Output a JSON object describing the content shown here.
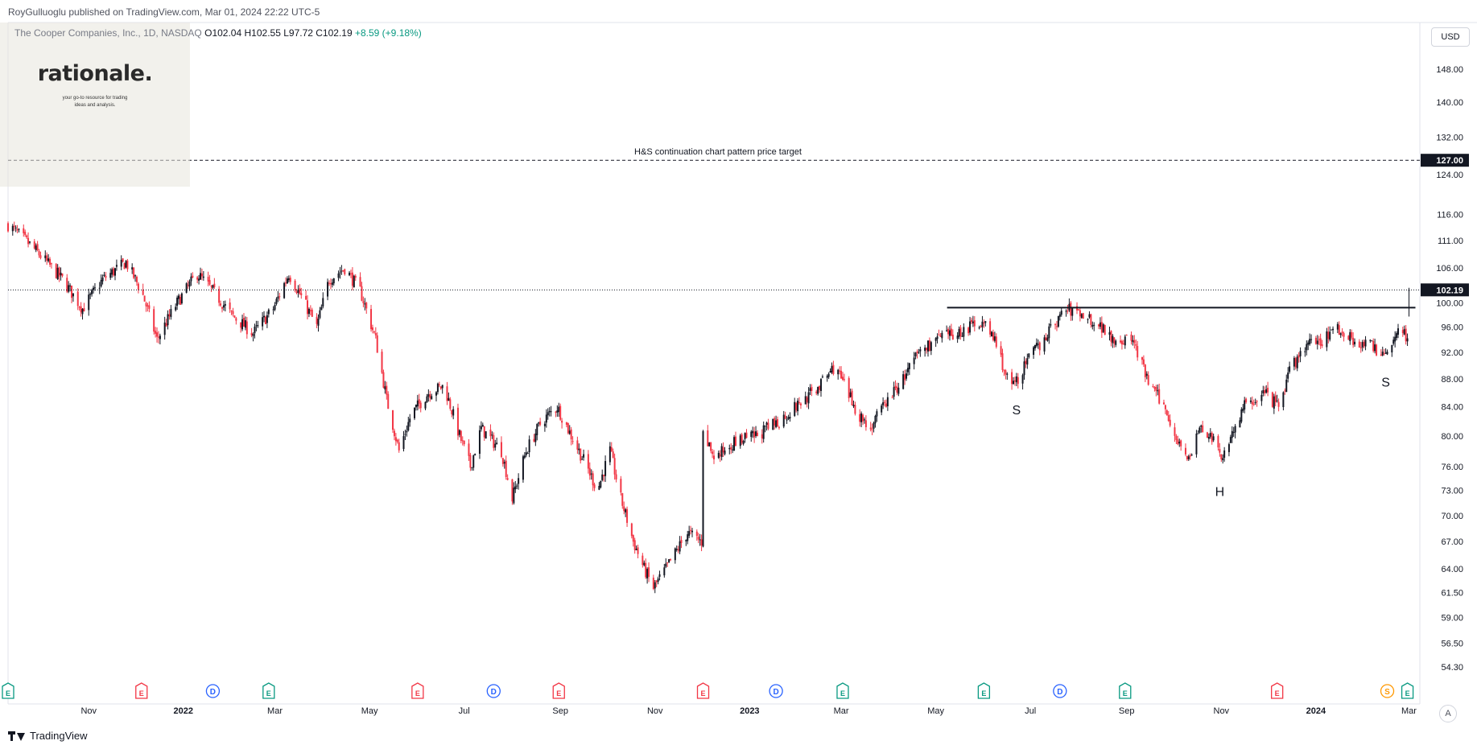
{
  "header": {
    "published": "RoyGulluoglu published on TradingView.com, Mar 01, 2024 22:22 UTC-5"
  },
  "legend": {
    "symbol": "The Cooper Companies, Inc., 1D, NASDAQ",
    "open": "O102.04",
    "high": "H102.55",
    "low": "L97.72",
    "close": "C102.19",
    "change": "+8.59 (+9.18%)"
  },
  "logo": {
    "word": "rationale.",
    "tagline_1": "your go-to resource for trading",
    "tagline_2": "ideas and analysis."
  },
  "currency": "USD",
  "footer": {
    "brand": "TradingView",
    "auto_label": "A"
  },
  "colors": {
    "up": "#089981",
    "down": "#f23645",
    "candle_body": "#131722",
    "earnings": "#f23645",
    "earnings_green": "#089981",
    "dividend": "#2962ff",
    "split": "#ff9800"
  },
  "chart_data": {
    "type": "candlestick",
    "title": "The Cooper Companies, Inc., 1D, NASDAQ",
    "currency": "USD",
    "scale": "log",
    "ylim": [
      53.5,
      160
    ],
    "y_ticks": [
      148,
      140,
      132,
      124,
      116,
      111,
      106,
      100,
      96,
      92,
      88,
      84,
      80,
      76,
      73,
      70,
      67,
      64,
      61.5,
      59,
      56.5,
      54.3
    ],
    "y_tick_labels": [
      "148.00",
      "140.00",
      "132.00",
      "124.00",
      "116.00",
      "111.00",
      "106.00",
      "100.00",
      "96.00",
      "92.00",
      "88.00",
      "84.00",
      "80.00",
      "76.00",
      "73.00",
      "70.00",
      "67.00",
      "64.00",
      "61.50",
      "59.00",
      "56.50",
      "54.30"
    ],
    "x_range": [
      "2021-09-10",
      "2024-03-08"
    ],
    "x_ticks": [
      {
        "date": "2021-11-01",
        "label": "Nov",
        "major": false
      },
      {
        "date": "2022-01-01",
        "label": "2022",
        "major": true
      },
      {
        "date": "2022-03-01",
        "label": "Mar",
        "major": false
      },
      {
        "date": "2022-05-01",
        "label": "May",
        "major": false
      },
      {
        "date": "2022-07-01",
        "label": "Jul",
        "major": false
      },
      {
        "date": "2022-09-01",
        "label": "Sep",
        "major": false
      },
      {
        "date": "2022-11-01",
        "label": "Nov",
        "major": false
      },
      {
        "date": "2023-01-01",
        "label": "2023",
        "major": true
      },
      {
        "date": "2023-03-01",
        "label": "Mar",
        "major": false
      },
      {
        "date": "2023-05-01",
        "label": "May",
        "major": false
      },
      {
        "date": "2023-07-01",
        "label": "Jul",
        "major": false
      },
      {
        "date": "2023-09-01",
        "label": "Sep",
        "major": false
      },
      {
        "date": "2023-11-01",
        "label": "Nov",
        "major": false
      },
      {
        "date": "2024-01-01",
        "label": "2024",
        "major": true
      },
      {
        "date": "2024-03-01",
        "label": "Mar",
        "major": false
      }
    ],
    "price_path": [
      [
        "2021-09-10",
        114
      ],
      [
        "2021-09-25",
        110
      ],
      [
        "2021-10-15",
        104
      ],
      [
        "2021-10-28",
        99
      ],
      [
        "2021-11-10",
        104
      ],
      [
        "2021-11-25",
        107
      ],
      [
        "2021-12-05",
        102
      ],
      [
        "2021-12-15",
        94
      ],
      [
        "2021-12-28",
        100
      ],
      [
        "2022-01-10",
        105
      ],
      [
        "2022-01-20",
        102
      ],
      [
        "2022-02-01",
        98
      ],
      [
        "2022-02-15",
        95
      ],
      [
        "2022-02-28",
        99
      ],
      [
        "2022-03-10",
        105
      ],
      [
        "2022-03-20",
        100
      ],
      [
        "2022-03-28",
        96
      ],
      [
        "2022-04-05",
        104
      ],
      [
        "2022-04-15",
        106
      ],
      [
        "2022-04-25",
        102
      ],
      [
        "2022-05-05",
        94
      ],
      [
        "2022-05-12",
        85
      ],
      [
        "2022-05-20",
        78
      ],
      [
        "2022-05-28",
        83
      ],
      [
        "2022-06-08",
        86
      ],
      [
        "2022-06-18",
        87
      ],
      [
        "2022-06-28",
        80
      ],
      [
        "2022-07-05",
        76
      ],
      [
        "2022-07-12",
        81
      ],
      [
        "2022-07-25",
        78
      ],
      [
        "2022-08-01",
        72
      ],
      [
        "2022-08-10",
        78
      ],
      [
        "2022-08-20",
        82
      ],
      [
        "2022-08-30",
        84
      ],
      [
        "2022-09-08",
        80
      ],
      [
        "2022-09-18",
        76
      ],
      [
        "2022-09-25",
        73
      ],
      [
        "2022-10-03",
        78
      ],
      [
        "2022-10-10",
        72
      ],
      [
        "2022-10-18",
        67
      ],
      [
        "2022-10-25",
        64
      ],
      [
        "2022-10-31",
        62
      ],
      [
        "2022-11-08",
        64
      ],
      [
        "2022-11-15",
        66
      ],
      [
        "2022-11-22",
        68
      ],
      [
        "2022-12-01",
        67
      ],
      [
        "2022-12-02",
        80
      ],
      [
        "2022-12-10",
        77
      ],
      [
        "2022-12-20",
        79
      ],
      [
        "2023-01-05",
        80
      ],
      [
        "2023-01-20",
        82
      ],
      [
        "2023-02-05",
        85
      ],
      [
        "2023-02-15",
        87
      ],
      [
        "2023-02-25",
        90
      ],
      [
        "2023-03-05",
        86
      ],
      [
        "2023-03-12",
        83
      ],
      [
        "2023-03-20",
        81
      ],
      [
        "2023-03-28",
        84
      ],
      [
        "2023-04-10",
        88
      ],
      [
        "2023-04-20",
        92
      ],
      [
        "2023-05-01",
        94
      ],
      [
        "2023-05-15",
        95
      ],
      [
        "2023-05-30",
        97
      ],
      [
        "2023-06-08",
        94
      ],
      [
        "2023-06-16",
        88
      ],
      [
        "2023-06-20",
        87
      ],
      [
        "2023-06-30",
        91
      ],
      [
        "2023-07-12",
        95
      ],
      [
        "2023-07-24",
        99
      ],
      [
        "2023-08-05",
        98
      ],
      [
        "2023-08-16",
        96
      ],
      [
        "2023-08-25",
        94
      ],
      [
        "2023-09-05",
        94
      ],
      [
        "2023-09-14",
        88
      ],
      [
        "2023-09-25",
        84
      ],
      [
        "2023-10-05",
        79
      ],
      [
        "2023-10-12",
        77
      ],
      [
        "2023-10-18",
        81
      ],
      [
        "2023-10-25",
        80
      ],
      [
        "2023-11-01",
        77
      ],
      [
        "2023-11-07",
        80
      ],
      [
        "2023-11-16",
        84
      ],
      [
        "2023-11-28",
        86
      ],
      [
        "2023-12-08",
        84
      ],
      [
        "2023-12-15",
        89
      ],
      [
        "2023-12-25",
        93
      ],
      [
        "2024-01-05",
        94
      ],
      [
        "2024-01-14",
        96
      ],
      [
        "2024-01-25",
        94
      ],
      [
        "2024-02-05",
        93
      ],
      [
        "2024-02-12",
        92
      ],
      [
        "2024-02-19",
        93
      ],
      [
        "2024-02-24",
        97
      ],
      [
        "2024-02-29",
        94
      ],
      [
        "2024-03-01",
        102.19
      ]
    ],
    "annotations": {
      "target_line": {
        "price": 127.0,
        "label": "H&S continuation chart pattern price target",
        "price_label": "127.00"
      },
      "neckline": {
        "price": 99.2,
        "from": "2023-05-01",
        "to": "2024-03-01"
      },
      "last_price": {
        "price": 102.19,
        "label": "102.19"
      },
      "pattern_labels": [
        {
          "text": "S",
          "date": "2023-06-22",
          "price": 83.6
        },
        {
          "text": "H",
          "date": "2023-10-31",
          "price": 72.9
        },
        {
          "text": "S",
          "date": "2024-02-15",
          "price": 87.6
        }
      ]
    },
    "events": [
      {
        "date": "2021-09-10",
        "type": "E"
      },
      {
        "date": "2021-12-05",
        "type": "E"
      },
      {
        "date": "2022-01-20",
        "type": "D"
      },
      {
        "date": "2022-02-25",
        "type": "E"
      },
      {
        "date": "2022-06-01",
        "type": "E"
      },
      {
        "date": "2022-07-20",
        "type": "D"
      },
      {
        "date": "2022-08-31",
        "type": "E"
      },
      {
        "date": "2022-12-02",
        "type": "E"
      },
      {
        "date": "2023-01-18",
        "type": "D"
      },
      {
        "date": "2023-03-02",
        "type": "E"
      },
      {
        "date": "2023-06-01",
        "type": "E"
      },
      {
        "date": "2023-07-20",
        "type": "D"
      },
      {
        "date": "2023-08-31",
        "type": "E"
      },
      {
        "date": "2023-12-07",
        "type": "E"
      },
      {
        "date": "2024-02-16",
        "type": "S"
      },
      {
        "date": "2024-02-29",
        "type": "E"
      }
    ]
  }
}
